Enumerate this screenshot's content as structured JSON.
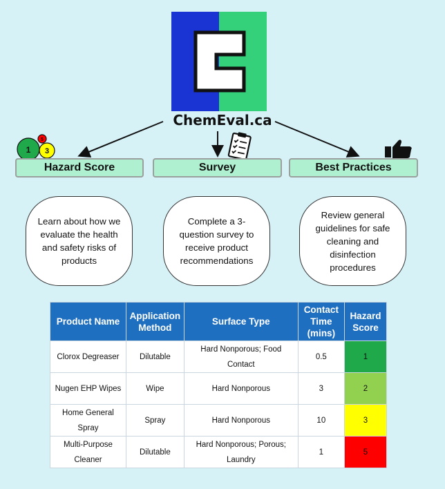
{
  "brand": {
    "name": "ChemEval.ca"
  },
  "categories": [
    {
      "title": "Hazard Score",
      "description": "Learn about how we evaluate the health and safety risks of products"
    },
    {
      "title": "Survey",
      "description": "Complete a 3-question survey to receive product recommendations"
    },
    {
      "title": "Best Practices",
      "description": "Review general guidelines for safe cleaning and disinfection procedures"
    }
  ],
  "hazard_icon": {
    "labels": [
      "1",
      "3",
      "5"
    ]
  },
  "table": {
    "headers": [
      "Product Name",
      "Application Method",
      "Surface Type",
      "Contact Time (mins)",
      "Hazard Score"
    ],
    "rows": [
      {
        "product": "Clorox Degreaser",
        "method": "Dilutable",
        "surface": "Hard Nonporous; Food Contact",
        "time": "0.5",
        "score": "1"
      },
      {
        "product": "Nugen EHP Wipes",
        "method": "Wipe",
        "surface": "Hard Nonporous",
        "time": "3",
        "score": "2"
      },
      {
        "product": "Home General Spray",
        "method": "Spray",
        "surface": "Hard Nonporous",
        "time": "10",
        "score": "3"
      },
      {
        "product": "Multi-Purpose Cleaner",
        "method": "Dilutable",
        "surface": "Hard Nonporous; Porous; Laundry",
        "time": "1",
        "score": "5"
      }
    ]
  },
  "colors": {
    "logo_blue": "#1a34d4",
    "logo_green": "#34d07a",
    "header_blue": "#1f6fc0",
    "score_1": "#1fa94a",
    "score_2": "#92d050",
    "score_3": "#ffff00",
    "score_5": "#ff0000"
  }
}
